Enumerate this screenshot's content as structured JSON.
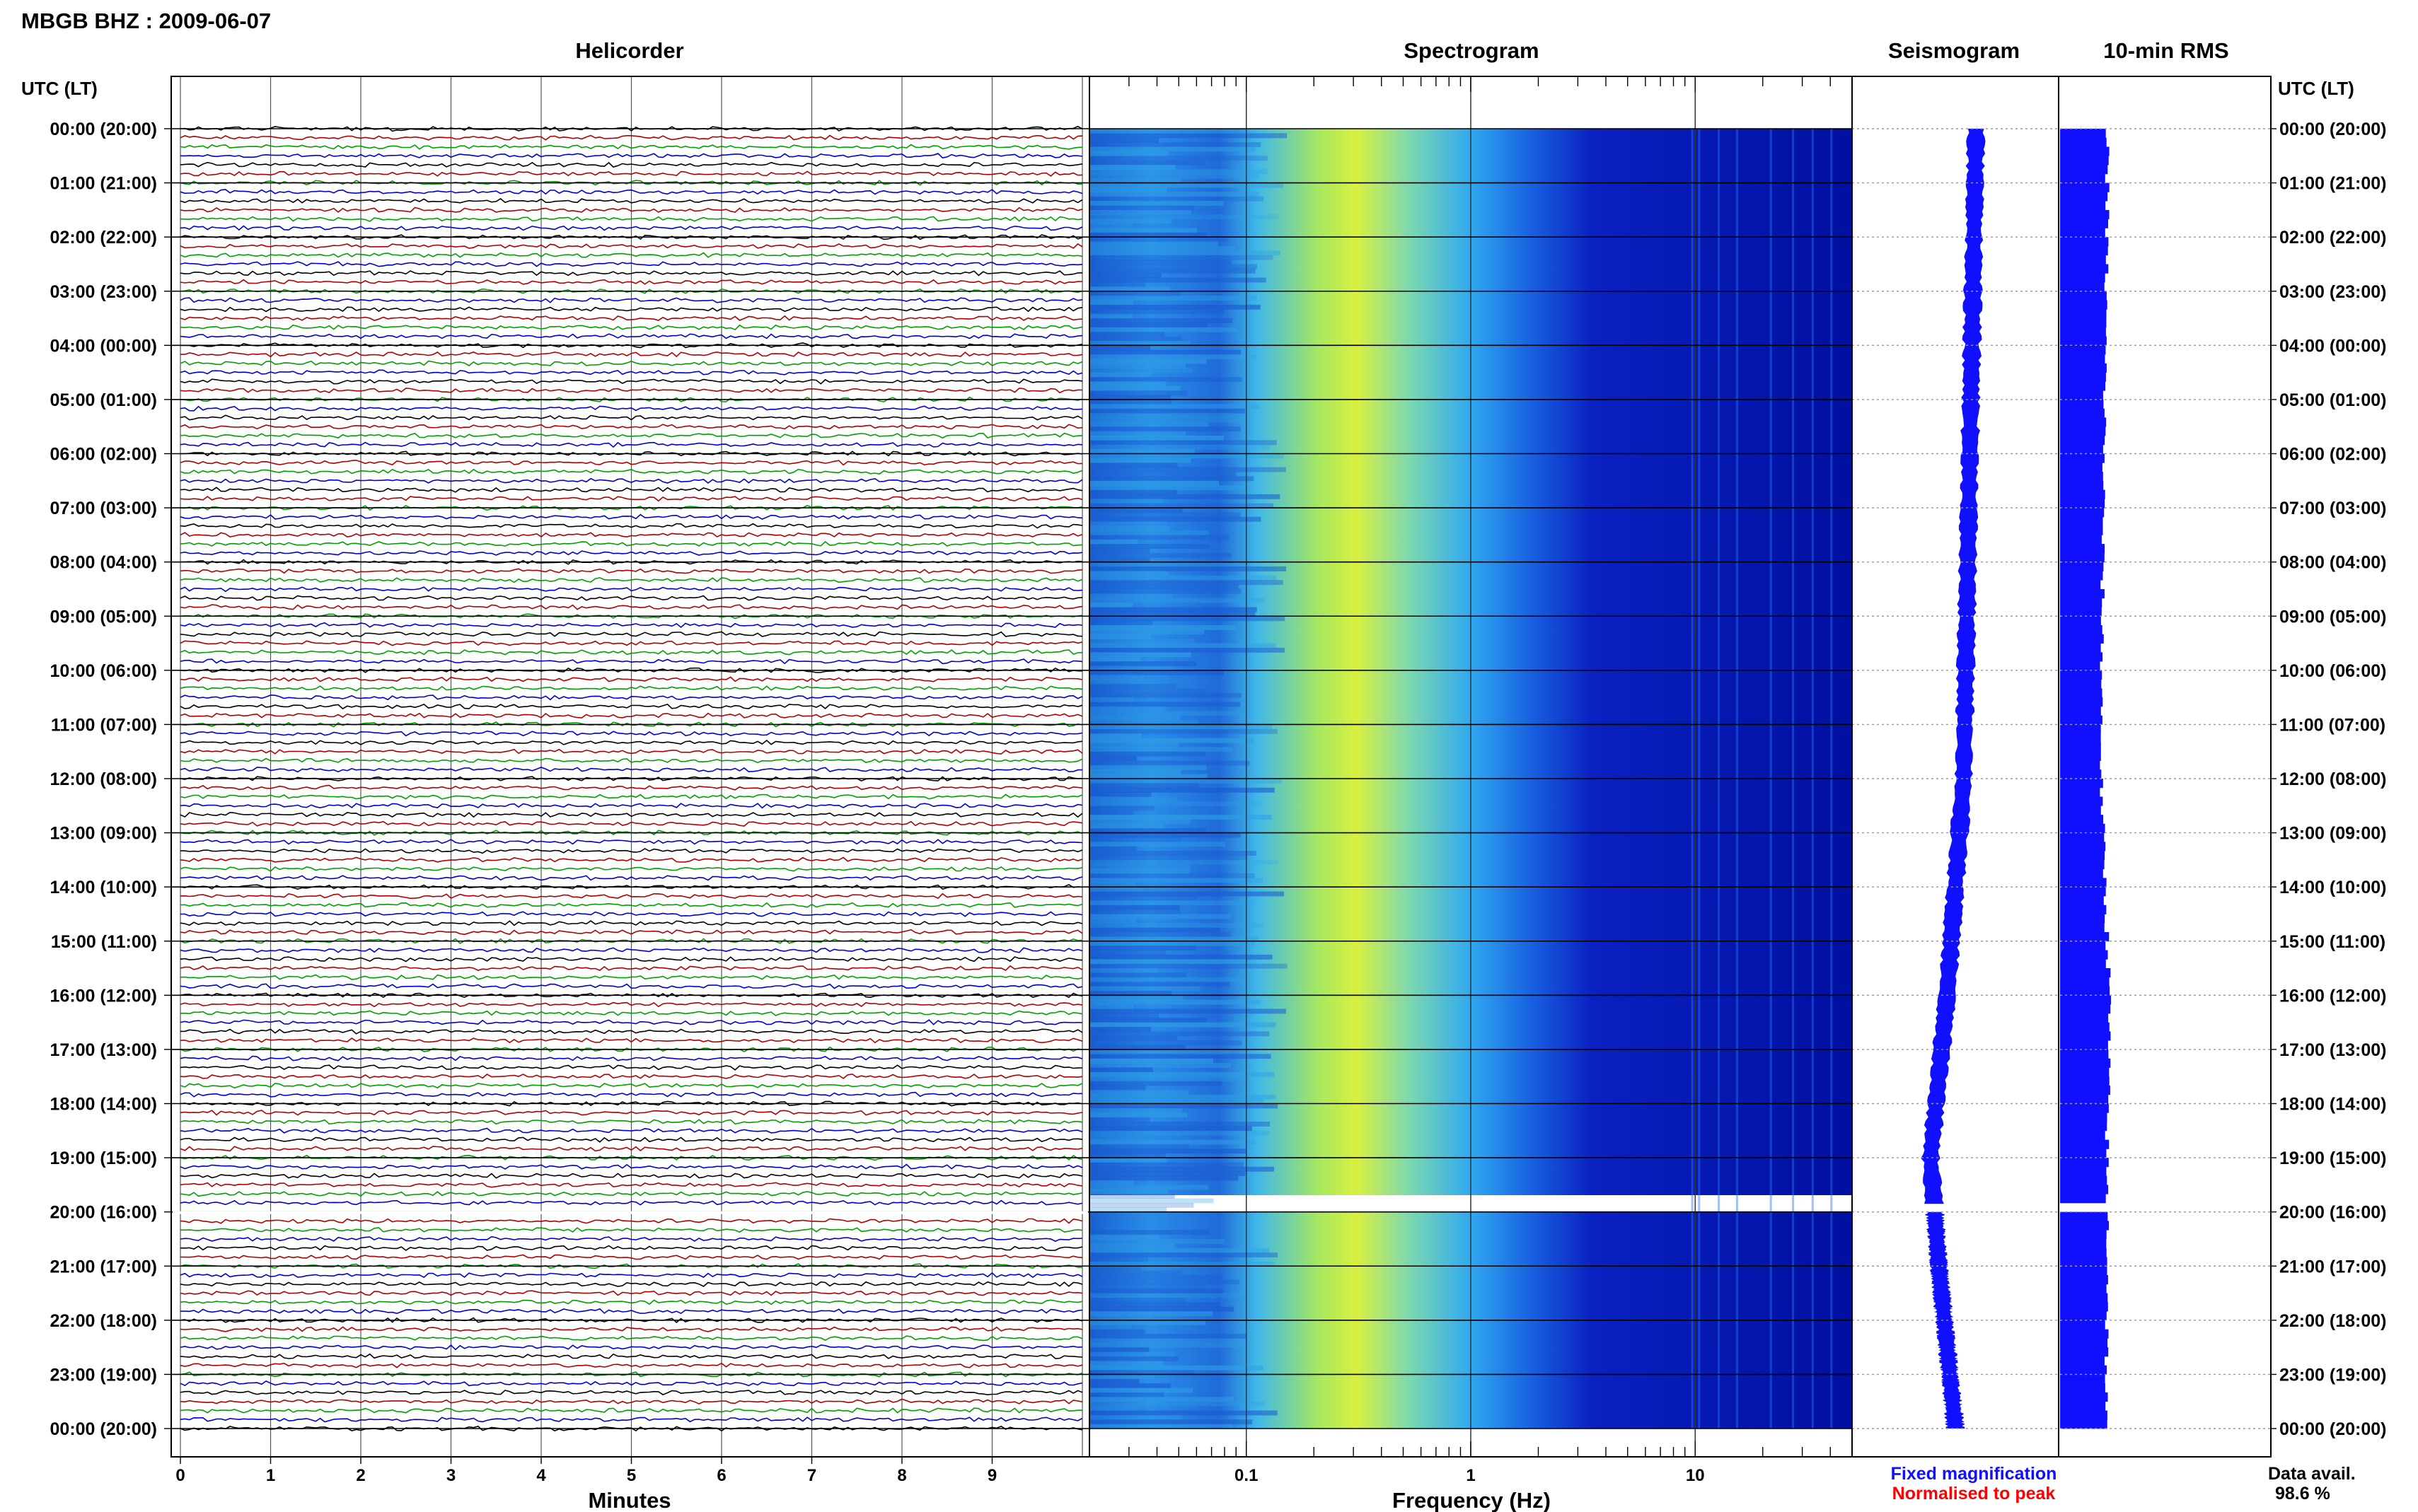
{
  "station_title": "MBGB BHZ : 2009-06-07",
  "panels": {
    "helicorder": "Helicorder",
    "spectrogram": "Spectrogram",
    "seismogram": "Seismogram",
    "rms": "10-min RMS"
  },
  "axis_labels": {
    "time_left": "UTC (LT)",
    "time_right": "UTC (LT)",
    "minutes": "Minutes",
    "frequency": "Frequency (Hz)"
  },
  "legend": {
    "fixed": "Fixed magnification",
    "normalised": "Normalised to peak",
    "fixed_color": "#1010ff",
    "normalised_color": "#ff0000"
  },
  "data_avail": {
    "label": "Data avail.",
    "value": "98.6 %"
  },
  "colors": {
    "trace_cycle": [
      "#000000",
      "#b00000",
      "#00a000",
      "#0000d0"
    ],
    "spectrogram_low": "#0a1ec8",
    "spectrogram_high": "#d6f040",
    "bars": "#1010ff"
  },
  "chart_data": {
    "type": "heatmap",
    "time_ticks": [
      "00:00 (20:00)",
      "01:00 (21:00)",
      "02:00 (22:00)",
      "03:00 (23:00)",
      "04:00 (00:00)",
      "05:00 (01:00)",
      "06:00 (02:00)",
      "07:00 (03:00)",
      "08:00 (04:00)",
      "09:00 (05:00)",
      "10:00 (06:00)",
      "11:00 (07:00)",
      "12:00 (08:00)",
      "13:00 (09:00)",
      "14:00 (10:00)",
      "15:00 (11:00)",
      "16:00 (12:00)",
      "17:00 (13:00)",
      "18:00 (14:00)",
      "19:00 (15:00)",
      "20:00 (16:00)",
      "21:00 (17:00)",
      "22:00 (18:00)",
      "23:00 (19:00)",
      "00:00 (20:00)"
    ],
    "minute_ticks": [
      "0",
      "1",
      "2",
      "3",
      "4",
      "5",
      "6",
      "7",
      "8",
      "9"
    ],
    "helicorder_xlim": [
      0,
      10
    ],
    "helicorder_lines_per_hour": 6,
    "frequency_ticks": [
      "0.1",
      "1",
      "10"
    ],
    "frequency_log_scale": true,
    "frequency_range_hz": [
      0.02,
      50
    ],
    "data_gap_hour": 20,
    "seismogram_offset_profile": [
      {
        "hour": 0,
        "offset": 0.1
      },
      {
        "hour": 12,
        "offset": 0.04
      },
      {
        "hour": 16,
        "offset": -0.04
      },
      {
        "hour": 19,
        "offset": -0.12
      },
      {
        "hour": 21,
        "offset": -0.08
      },
      {
        "hour": 24,
        "offset": 0.0
      }
    ],
    "rms_profile": [
      {
        "hour": 0,
        "width": 0.7
      },
      {
        "hour": 4,
        "width": 0.66
      },
      {
        "hour": 8,
        "width": 0.62
      },
      {
        "hour": 12,
        "width": 0.6
      },
      {
        "hour": 14,
        "width": 0.66
      },
      {
        "hour": 16,
        "width": 0.72
      },
      {
        "hour": 19,
        "width": 0.68
      },
      {
        "hour": 21,
        "width": 0.7
      },
      {
        "hour": 24,
        "width": 0.66
      }
    ]
  }
}
